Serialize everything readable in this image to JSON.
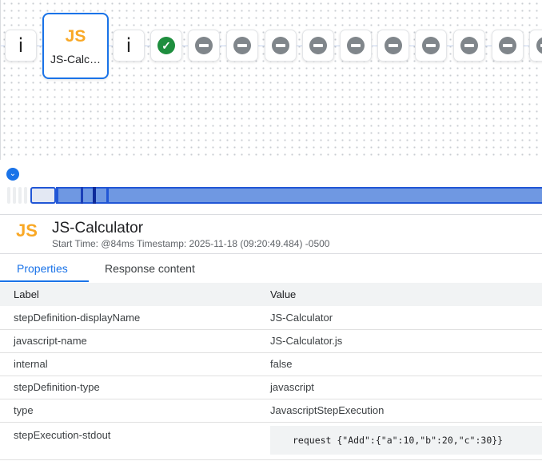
{
  "flow": {
    "nodes": [
      {
        "type": "info",
        "label": "i"
      },
      {
        "type": "javascript",
        "icon": "JS",
        "label": "JS-Calc…",
        "selected": true
      },
      {
        "type": "info",
        "label": "i"
      },
      {
        "type": "success"
      },
      {
        "type": "skipped"
      },
      {
        "type": "skipped"
      },
      {
        "type": "skipped"
      },
      {
        "type": "skipped"
      },
      {
        "type": "skipped"
      },
      {
        "type": "skipped"
      },
      {
        "type": "skipped"
      },
      {
        "type": "skipped"
      },
      {
        "type": "skipped"
      },
      {
        "type": "skipped"
      }
    ],
    "accent": "#1a73e8"
  },
  "detail": {
    "icon": "JS",
    "title": "JS-Calculator",
    "subtitle": "Start Time: @84ms Timestamp: 2025-11-18 (09:20:49.484) -0500"
  },
  "tabs": [
    {
      "label": "Properties",
      "active": true
    },
    {
      "label": "Response content"
    }
  ],
  "table": {
    "headers": [
      "Label",
      "Value"
    ],
    "rows": [
      [
        "stepDefinition-displayName",
        "JS-Calculator"
      ],
      [
        "javascript-name",
        "JS-Calculator.js"
      ],
      [
        "internal",
        "false"
      ],
      [
        "stepDefinition-type",
        "javascript"
      ],
      [
        "type",
        "JavascriptStepExecution"
      ],
      [
        "stepExecution-stdout",
        "request {\"Add\":{\"a\":10,\"b\":20,\"c\":30}}"
      ]
    ]
  }
}
